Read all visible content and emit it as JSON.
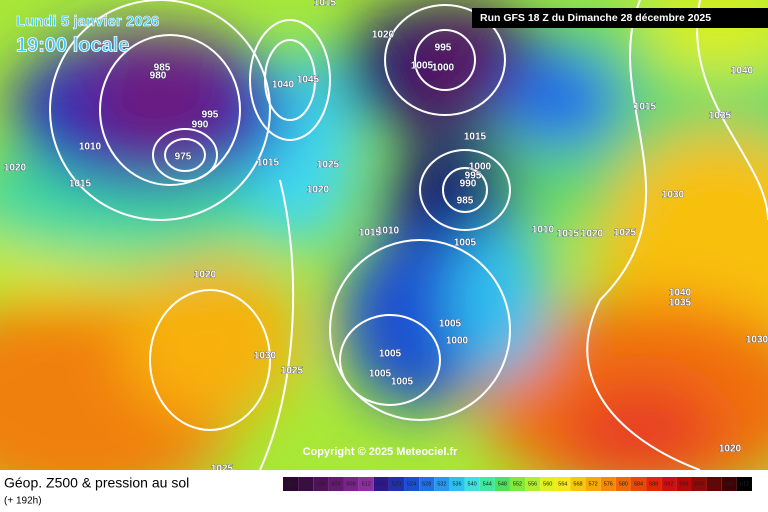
{
  "header": {
    "date": "Lundi 5 janvier 2026",
    "time": "19:00 locale",
    "run": "Run GFS 18 Z du Dimanche 28 décembre 2025"
  },
  "copyright": "Copyright © 2025 Meteociel.fr",
  "footer": {
    "title": "Géop. Z500 & pression au sol",
    "lead": "(+ 192h)"
  },
  "legend": {
    "labels": [
      492,
      496,
      500,
      504,
      508,
      512,
      516,
      520,
      524,
      528,
      532,
      536,
      540,
      544,
      548,
      552,
      556,
      560,
      564,
      568,
      572,
      576,
      580,
      584,
      588,
      592,
      596,
      600,
      604,
      608,
      612
    ],
    "colors": [
      "#2a0a30",
      "#3c0c45",
      "#50125a",
      "#641a70",
      "#782488",
      "#8c30a0",
      "#2c1a8a",
      "#2030b0",
      "#1a50d0",
      "#2070e8",
      "#2898f0",
      "#30c0f0",
      "#40e0e0",
      "#40e8a0",
      "#50e060",
      "#80e840",
      "#b0f030",
      "#e0f020",
      "#f8e818",
      "#f8c810",
      "#f8a808",
      "#f88808",
      "#f06808",
      "#e84808",
      "#e02808",
      "#d01010",
      "#b80808",
      "#900808",
      "#680404",
      "#400202",
      "#000000"
    ]
  },
  "isobars": [
    "1015",
    "1020",
    "995",
    "1005",
    "1000",
    "985",
    "980",
    "1045",
    "1040",
    "995",
    "990",
    "1010",
    "1020",
    "1015",
    "975",
    "1015",
    "1025",
    "1020",
    "1015",
    "1000",
    "995",
    "990",
    "985",
    "1015",
    "1010",
    "1005",
    "1010",
    "1015",
    "1020",
    "1025",
    "1030",
    "1015",
    "1035",
    "1040",
    "1020",
    "1030",
    "1025",
    "1005",
    "1000",
    "1005",
    "1005",
    "1005",
    "1040",
    "1035",
    "1030",
    "1025",
    "1020"
  ]
}
